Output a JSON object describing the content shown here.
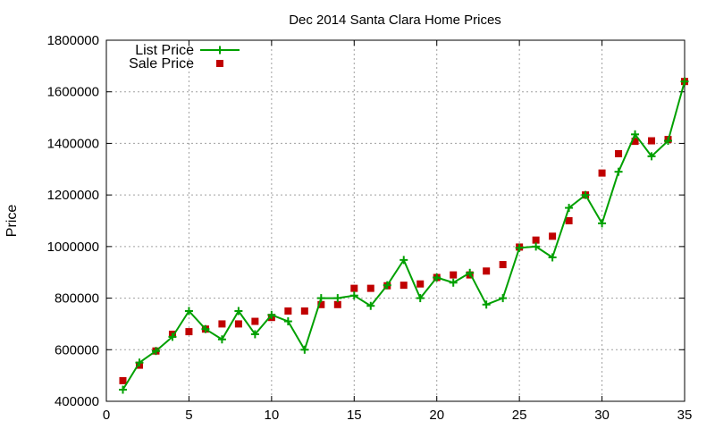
{
  "chart_data": {
    "type": "line",
    "title": "Dec 2014 Santa Clara Home Prices",
    "xlabel": "",
    "ylabel": "Price",
    "xlim": [
      0,
      35
    ],
    "ylim": [
      400000,
      1800000
    ],
    "x_ticks": [
      "0",
      "5",
      "10",
      "15",
      "20",
      "25",
      "30",
      "35"
    ],
    "y_ticks": [
      "400000",
      "600000",
      "800000",
      "1000000",
      "1200000",
      "1400000",
      "1600000",
      "1800000"
    ],
    "grid": true,
    "legend_position": "top-left",
    "x": [
      1,
      2,
      3,
      4,
      5,
      6,
      7,
      8,
      9,
      10,
      11,
      12,
      13,
      14,
      15,
      16,
      17,
      18,
      19,
      20,
      21,
      22,
      23,
      24,
      25,
      26,
      27,
      28,
      29,
      30,
      31,
      32,
      33,
      34,
      35
    ],
    "series": [
      {
        "name": "List Price",
        "style": "lines+points",
        "color": "#00a000",
        "values": [
          445000,
          550000,
          595000,
          650000,
          750000,
          680000,
          640000,
          750000,
          660000,
          735000,
          710000,
          600000,
          800000,
          800000,
          810000,
          770000,
          850000,
          948000,
          800000,
          880000,
          860000,
          898000,
          775000,
          800000,
          995000,
          1000000,
          958000,
          1150000,
          1200000,
          1090000,
          1290000,
          1435000,
          1350000,
          1410000,
          1640000
        ]
      },
      {
        "name": "Sale Price",
        "style": "points",
        "color": "#c00000",
        "values": [
          480000,
          540000,
          595000,
          660000,
          670000,
          680000,
          700000,
          700000,
          710000,
          725000,
          750000,
          750000,
          775000,
          775000,
          838000,
          838000,
          848000,
          850000,
          855000,
          880000,
          890000,
          890000,
          905000,
          930000,
          998000,
          1025000,
          1040000,
          1100000,
          1200000,
          1285000,
          1360000,
          1408000,
          1410000,
          1415000,
          1640000
        ]
      }
    ]
  }
}
